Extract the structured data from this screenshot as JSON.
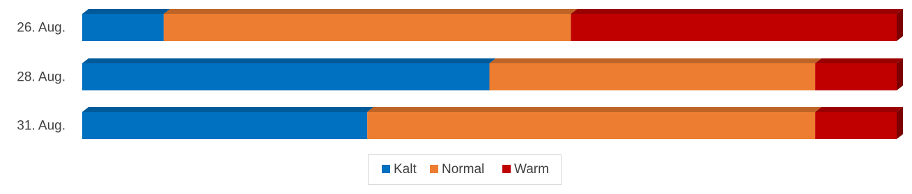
{
  "chart_data": {
    "type": "stacked-bar-3d",
    "categories": [
      "26. Aug.",
      "28. Aug.",
      "31. Aug."
    ],
    "xlim": [
      0,
      100
    ],
    "series": [
      {
        "name": "Kalt",
        "color": "#0070c0",
        "values": [
          10,
          50,
          35
        ]
      },
      {
        "name": "Normal",
        "color": "#ed7d31",
        "values": [
          50,
          40,
          55
        ]
      },
      {
        "name": "Warm",
        "color": "#c00000",
        "values": [
          40,
          10,
          10
        ]
      }
    ]
  }
}
